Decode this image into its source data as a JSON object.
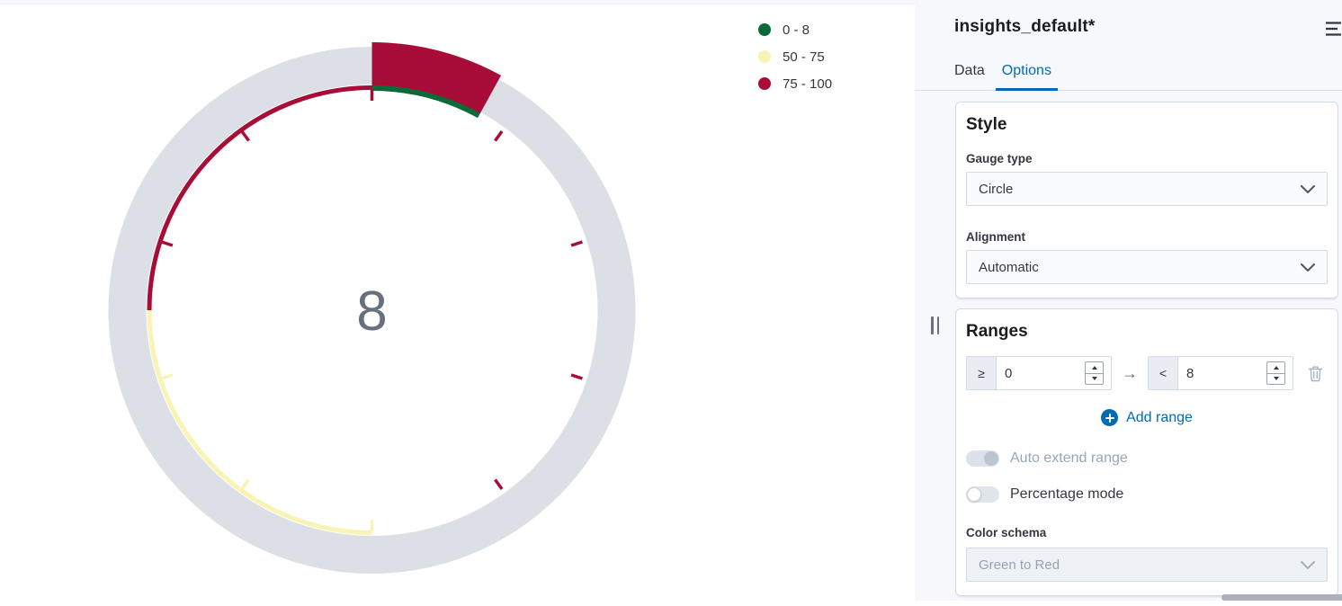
{
  "colors": {
    "red": "#a80d38",
    "green": "#0a6a38",
    "yellow": "#f8f4b5",
    "ring_gray": "#dcdfe6",
    "value_text": "#69707d",
    "accent_blue": "#006bb4"
  },
  "chart_data": {
    "type": "gauge",
    "gauge_type": "circle",
    "value": 8,
    "min": 0,
    "max": 100,
    "value_arc_color": "#a80d38",
    "ring_color": "#dcdfe6",
    "value_text_color": "#69707d",
    "tick_interval": 10,
    "bands": [
      {
        "label": "0 - 8",
        "from": 0,
        "to": 8,
        "color": "#0a6a38",
        "thickness": 7
      },
      {
        "label": "50 - 75",
        "from": 50,
        "to": 75,
        "color": "#f8f4b5",
        "thickness": 5
      },
      {
        "label": "75 - 100",
        "from": 75,
        "to": 100,
        "color": "#a80d38",
        "thickness": 5
      }
    ],
    "ticks": [
      {
        "value": 0,
        "color": "#a80d38"
      },
      {
        "value": 10,
        "color": "#a80d38"
      },
      {
        "value": 20,
        "color": "#a80d38"
      },
      {
        "value": 30,
        "color": "#a80d38"
      },
      {
        "value": 40,
        "color": "#a80d38"
      },
      {
        "value": 50,
        "color": "#f8f4b5"
      },
      {
        "value": 60,
        "color": "#f8f4b5"
      },
      {
        "value": 70,
        "color": "#f8f4b5"
      },
      {
        "value": 80,
        "color": "#a80d38"
      },
      {
        "value": 90,
        "color": "#a80d38"
      }
    ],
    "legend": [
      {
        "label": "0 - 8",
        "color": "#0a6a38"
      },
      {
        "label": "50 - 75",
        "color": "#f8f4b5"
      },
      {
        "label": "75 - 100",
        "color": "#a80d38"
      }
    ],
    "legend_position": "top-right"
  },
  "panel": {
    "title": "insights_default*",
    "tabs": [
      {
        "label": "Data",
        "active": false
      },
      {
        "label": "Options",
        "active": true
      }
    ],
    "style": {
      "heading": "Style",
      "gauge_type_label": "Gauge type",
      "gauge_type_value": "Circle",
      "alignment_label": "Alignment",
      "alignment_value": "Automatic"
    },
    "ranges": {
      "heading": "Ranges",
      "row": {
        "from_operator": "≥",
        "from_value": "0",
        "arrow": "→",
        "to_operator": "<",
        "to_value": "8"
      },
      "add_range_label": "Add range",
      "toggles": [
        {
          "label": "Auto extend range",
          "on": true,
          "disabled": true
        },
        {
          "label": "Percentage mode",
          "on": false,
          "disabled": false
        }
      ],
      "color_schema_label": "Color schema",
      "color_schema_value": "Green to Red",
      "color_schema_disabled": true
    }
  }
}
